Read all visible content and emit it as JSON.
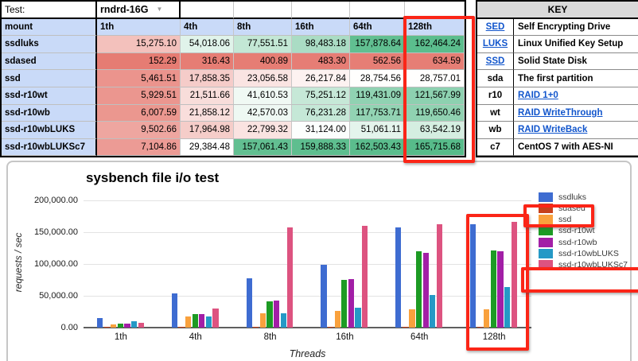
{
  "spreadsheet": {
    "test_label": "Test:",
    "test_value": "rndrd-16G",
    "columns": [
      "mount",
      "1th",
      "4th",
      "8th",
      "16th",
      "64th",
      "128th"
    ],
    "rows": [
      {
        "mount": "ssdluks",
        "values": [
          15275.1,
          54018.06,
          77551.51,
          98483.18,
          157878.64,
          162464.24
        ]
      },
      {
        "mount": "sdased",
        "values": [
          152.29,
          316.43,
          400.89,
          483.3,
          562.56,
          634.59
        ]
      },
      {
        "mount": "ssd",
        "values": [
          5461.51,
          17858.35,
          23056.58,
          26217.84,
          28754.56,
          28757.01
        ]
      },
      {
        "mount": "ssd-r10wt",
        "values": [
          5929.51,
          21511.66,
          41610.53,
          75251.12,
          119431.09,
          121567.99
        ]
      },
      {
        "mount": "ssd-r10wb",
        "values": [
          6007.59,
          21858.12,
          42570.03,
          76231.28,
          117753.71,
          119650.46
        ]
      },
      {
        "mount": "ssd-r10wbLUKS",
        "values": [
          9502.66,
          17964.98,
          22799.32,
          31124.0,
          51061.11,
          63542.19
        ]
      },
      {
        "mount": "ssd-r10wbLUKSc7",
        "values": [
          7104.86,
          29384.48,
          157061.43,
          159888.33,
          162503.43,
          165715.68
        ]
      }
    ],
    "heatmap_colors": {
      "min": "#e67c73",
      "mid": "#ffffff",
      "max": "#57bb8a"
    },
    "header_bg": "#c9daf8"
  },
  "key_table": {
    "title": "KEY",
    "entries": [
      {
        "abbr": "SED",
        "abbr_is_link": true,
        "desc": "Self Encrypting Drive",
        "desc_is_link": false
      },
      {
        "abbr": "LUKS",
        "abbr_is_link": true,
        "desc": "Linux Unified Key Setup",
        "desc_is_link": false
      },
      {
        "abbr": "SSD",
        "abbr_is_link": true,
        "desc": "Solid State Disk",
        "desc_is_link": false
      },
      {
        "abbr": "sda",
        "abbr_is_link": false,
        "desc": "The first partition",
        "desc_is_link": false
      },
      {
        "abbr": "r10",
        "abbr_is_link": false,
        "desc": "RAID 1+0",
        "desc_is_link": true
      },
      {
        "abbr": "wt",
        "abbr_is_link": false,
        "desc": "RAID WriteThrough",
        "desc_is_link": true
      },
      {
        "abbr": "wb",
        "abbr_is_link": false,
        "desc": "RAID WriteBack",
        "desc_is_link": true
      },
      {
        "abbr": "c7",
        "abbr_is_link": false,
        "desc": "CentOS 7 with AES-NI",
        "desc_is_link": false
      }
    ],
    "link_color": "#1155cc"
  },
  "chart_data": {
    "type": "bar",
    "title": "sysbench file i/o test",
    "xlabel": "Threads",
    "ylabel": "requests / sec",
    "ylim": [
      0,
      200000
    ],
    "y_ticks": [
      "200,000.00",
      "150,000.00",
      "100,000.00",
      "50,000.00",
      "0.00"
    ],
    "grid": true,
    "legend_position": "right",
    "categories": [
      "1th",
      "4th",
      "8th",
      "16th",
      "64th",
      "128th"
    ],
    "series": [
      {
        "name": "ssdluks",
        "color": "#3e6cd1",
        "values": [
          15275.1,
          54018.06,
          77551.51,
          98483.18,
          157878.64,
          162464.24
        ]
      },
      {
        "name": "sdased",
        "color": "#c6411c",
        "values": [
          152.29,
          316.43,
          400.89,
          483.3,
          562.56,
          634.59
        ]
      },
      {
        "name": "ssd",
        "color": "#f9a13d",
        "values": [
          5461.51,
          17858.35,
          23056.58,
          26217.84,
          28754.56,
          28757.01
        ]
      },
      {
        "name": "ssd-r10wt",
        "color": "#1d9b24",
        "values": [
          5929.51,
          21511.66,
          41610.53,
          75251.12,
          119431.09,
          121567.99
        ]
      },
      {
        "name": "ssd-r10wb",
        "color": "#a21fa6",
        "values": [
          6007.59,
          21858.12,
          42570.03,
          76231.28,
          117753.71,
          119650.46
        ]
      },
      {
        "name": "ssd-r10wbLUKS",
        "color": "#2599c6",
        "values": [
          9502.66,
          17964.98,
          22799.32,
          31124.0,
          51061.11,
          63542.19
        ]
      },
      {
        "name": "ssd-r10wbLUKSc7",
        "color": "#dd5380",
        "values": [
          7104.86,
          29384.48,
          157061.43,
          159888.33,
          162503.43,
          165715.68
        ]
      }
    ]
  },
  "annotations": {
    "highlight_color": "#fb2517",
    "highlighted_items": [
      "table-column-128th",
      "chart-group-128th",
      "legend-sdased",
      "legend-ssd-r10wbLUKSc7"
    ]
  }
}
